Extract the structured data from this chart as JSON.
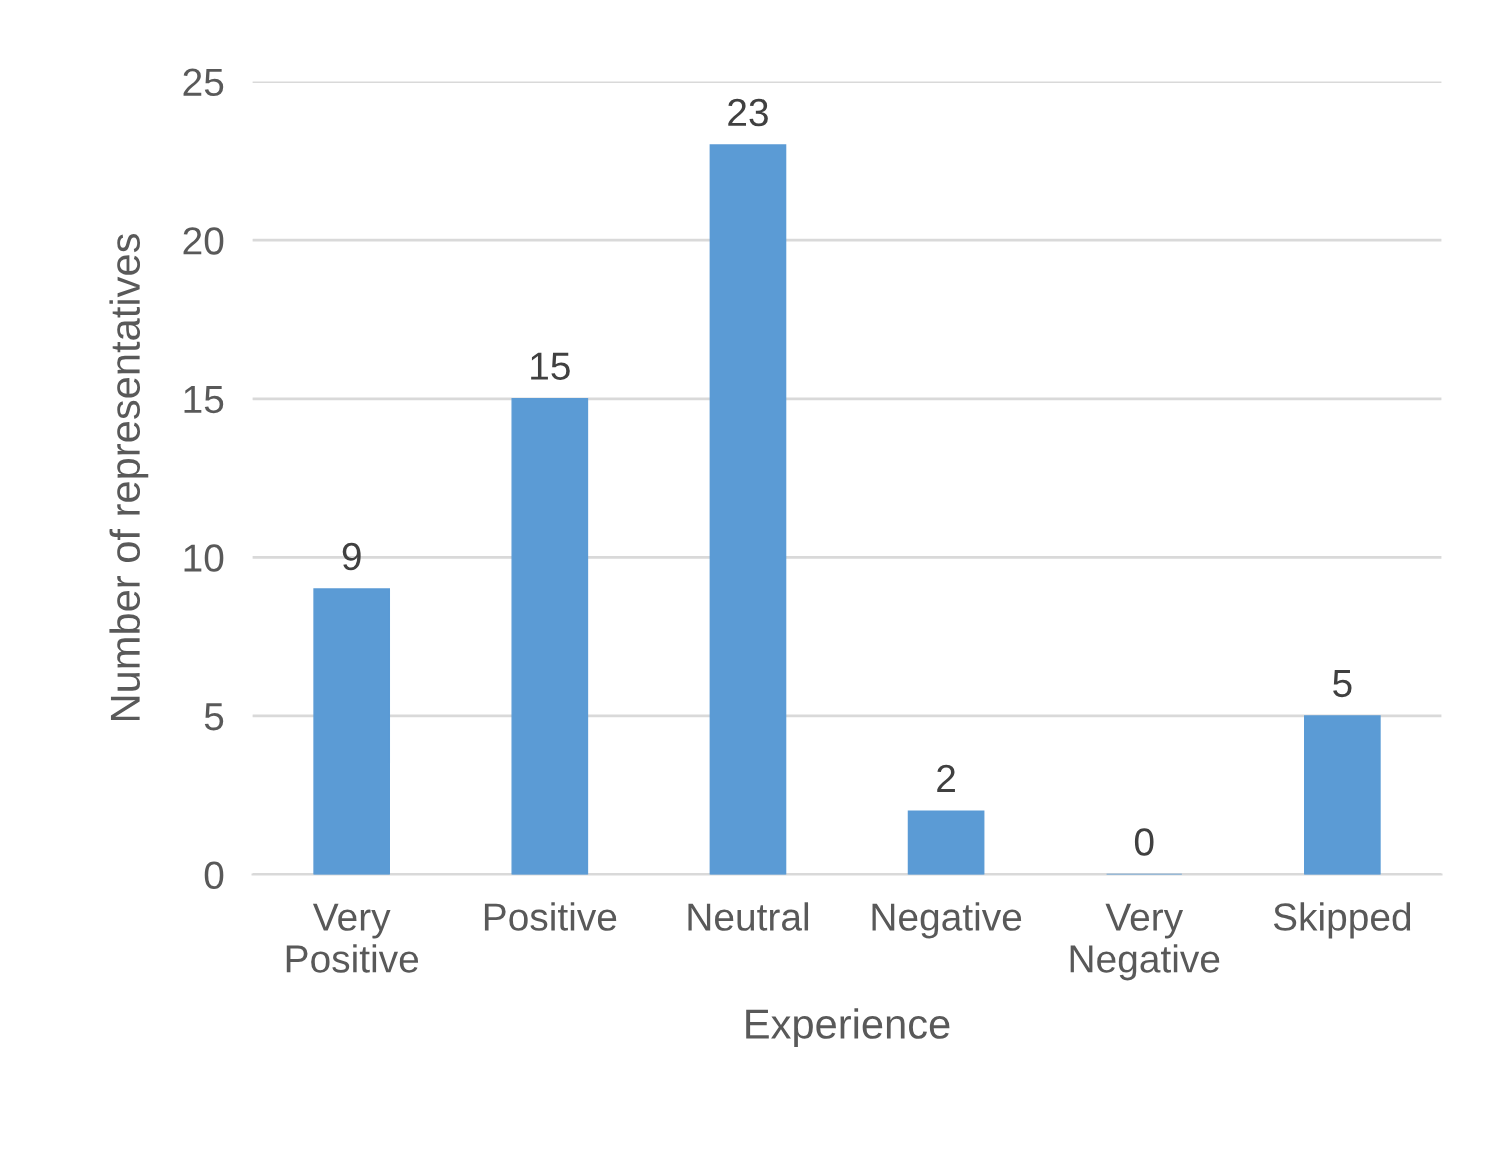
{
  "chart_data": {
    "type": "bar",
    "xlabel": "Experience",
    "ylabel": "Number of representatives",
    "categories": [
      "Very\nPositive",
      "Positive",
      "Neutral",
      "Negative",
      "Very\nNegative",
      "Skipped"
    ],
    "values": [
      9,
      15,
      23,
      2,
      0,
      5
    ],
    "color": "#5b9bd5",
    "ylim": [
      0,
      25
    ],
    "yticks": [
      0,
      5,
      10,
      15,
      20,
      25
    ],
    "grid": "y",
    "data_labels": true
  }
}
